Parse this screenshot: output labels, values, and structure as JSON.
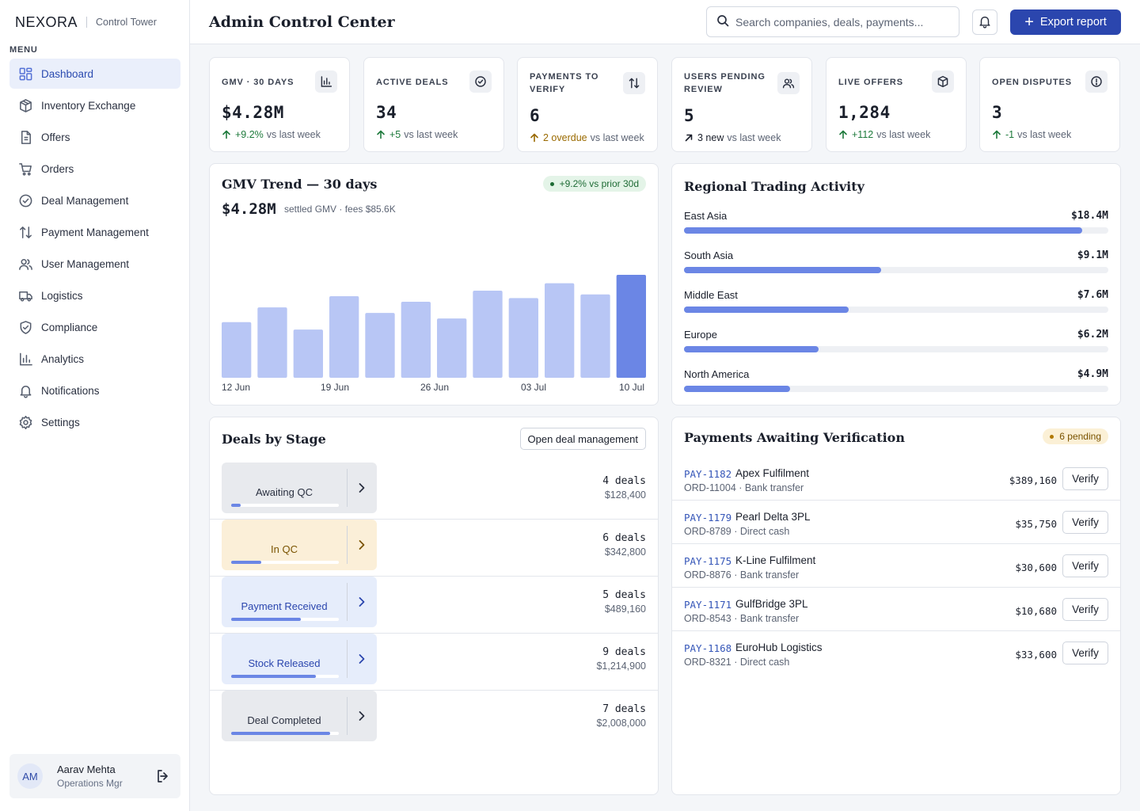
{
  "brand": {
    "name": "NEXORA",
    "subtitle": "Control Tower"
  },
  "sidebar": {
    "menu_title": "MENU",
    "items": [
      {
        "label": "Dashboard",
        "icon": "dashboard-icon",
        "active": true
      },
      {
        "label": "Inventory Exchange",
        "icon": "box-icon"
      },
      {
        "label": "Offers",
        "icon": "document-icon"
      },
      {
        "label": "Orders",
        "icon": "cart-icon"
      },
      {
        "label": "Deal Management",
        "icon": "check-circle-icon"
      },
      {
        "label": "Payment Management",
        "icon": "arrows-updown-icon"
      },
      {
        "label": "User Management",
        "icon": "users-icon"
      },
      {
        "label": "Logistics",
        "icon": "truck-icon"
      },
      {
        "label": "Compliance",
        "icon": "shield-icon"
      },
      {
        "label": "Analytics",
        "icon": "bar-chart-icon"
      },
      {
        "label": "Notifications",
        "icon": "bell-icon"
      },
      {
        "label": "Settings",
        "icon": "gear-icon"
      }
    ],
    "user": {
      "initials": "AM",
      "name": "Aarav Mehta",
      "role": "Operations Mgr"
    }
  },
  "header": {
    "title": "Admin Control Center",
    "search_placeholder": "Search companies, deals, payments...",
    "export_label": "Export report"
  },
  "stats": [
    {
      "label": "GMV · 30 DAYS",
      "value": "$4.28M",
      "delta": "+9.2%",
      "delta_kind": "up",
      "suffix": "vs last week",
      "icon": "bar-chart-icon"
    },
    {
      "label": "ACTIVE DEALS",
      "value": "34",
      "delta": "+5",
      "delta_kind": "up",
      "suffix": "vs last week",
      "icon": "check-circle-icon"
    },
    {
      "label": "PAYMENTS TO VERIFY",
      "value": "6",
      "delta": "2 overdue",
      "delta_kind": "warn",
      "suffix": "vs last week",
      "icon": "arrows-updown-icon"
    },
    {
      "label": "USERS PENDING REVIEW",
      "value": "5",
      "delta": "3 new",
      "delta_kind": "neutral",
      "suffix": "vs last week",
      "icon": "users-icon"
    },
    {
      "label": "LIVE OFFERS",
      "value": "1,284",
      "delta": "+112",
      "delta_kind": "up",
      "suffix": "vs last week",
      "icon": "cube-icon"
    },
    {
      "label": "OPEN DISPUTES",
      "value": "3",
      "delta": "-1",
      "delta_kind": "up",
      "suffix": "vs last week",
      "icon": "alert-circle-icon"
    }
  ],
  "gmv_panel": {
    "title": "GMV Trend — 30 days",
    "badge": "+9.2% vs prior 30d",
    "value": "$4.28M",
    "subtitle": "settled GMV · fees $85.6K"
  },
  "chart_data": {
    "type": "bar",
    "title": "GMV Trend — 30 days",
    "xlabel": "",
    "ylabel": "",
    "x_tick_labels": [
      "12 Jun",
      "19 Jun",
      "26 Jun",
      "03 Jul",
      "10 Jul"
    ],
    "values": [
      60,
      76,
      52,
      88,
      70,
      82,
      64,
      94,
      86,
      102,
      90,
      118
    ],
    "highlight_last": true,
    "colors": {
      "bar": "#b8c6f5",
      "highlight": "#6b86e5"
    },
    "ylim": [
      0,
      200
    ],
    "grid": false
  },
  "region_panel": {
    "title": "Regional Trading Activity",
    "regions": [
      {
        "name": "East Asia",
        "value": "$18.4M",
        "amount": 18.4
      },
      {
        "name": "South Asia",
        "value": "$9.1M",
        "amount": 9.1
      },
      {
        "name": "Middle East",
        "value": "$7.6M",
        "amount": 7.6
      },
      {
        "name": "Europe",
        "value": "$6.2M",
        "amount": 6.2
      },
      {
        "name": "North America",
        "value": "$4.9M",
        "amount": 4.9
      }
    ],
    "scale_max": 19.6
  },
  "deals_panel": {
    "title": "Deals by Stage",
    "button": "Open deal management",
    "stages": [
      {
        "name": "Awaiting QC",
        "count": "4 deals",
        "amount": "$128,400",
        "progress": 0.09,
        "bg": "#e8eaee",
        "fg": "#2a3040"
      },
      {
        "name": "In QC",
        "count": "6 deals",
        "amount": "$342,800",
        "progress": 0.28,
        "bg": "#fbefd8",
        "fg": "#7a5300"
      },
      {
        "name": "Payment Received",
        "count": "5 deals",
        "amount": "$489,160",
        "progress": 0.65,
        "bg": "#e6edfb",
        "fg": "#2b46ae"
      },
      {
        "name": "Stock Released",
        "count": "9 deals",
        "amount": "$1,214,900",
        "progress": 0.79,
        "bg": "#e6edfb",
        "fg": "#2b46ae"
      },
      {
        "name": "Deal Completed",
        "count": "7 deals",
        "amount": "$2,008,000",
        "progress": 0.92,
        "bg": "#e8eaee",
        "fg": "#2a3040"
      }
    ]
  },
  "payments_panel": {
    "title": "Payments Awaiting Verification",
    "badge": "6 pending",
    "verify_label": "Verify",
    "rows": [
      {
        "id": "PAY-1182",
        "company": "Apex Fulfilment",
        "sub": "ORD-11004 · Bank transfer",
        "amount": "$389,160"
      },
      {
        "id": "PAY-1179",
        "company": "Pearl Delta 3PL",
        "sub": "ORD-8789 · Direct cash",
        "amount": "$35,750"
      },
      {
        "id": "PAY-1175",
        "company": "K-Line Fulfilment",
        "sub": "ORD-8876 · Bank transfer",
        "amount": "$30,600"
      },
      {
        "id": "PAY-1171",
        "company": "GulfBridge 3PL",
        "sub": "ORD-8543 · Bank transfer",
        "amount": "$10,680"
      },
      {
        "id": "PAY-1168",
        "company": "EuroHub Logistics",
        "sub": "ORD-8321 · Direct cash",
        "amount": "$33,600"
      }
    ]
  }
}
